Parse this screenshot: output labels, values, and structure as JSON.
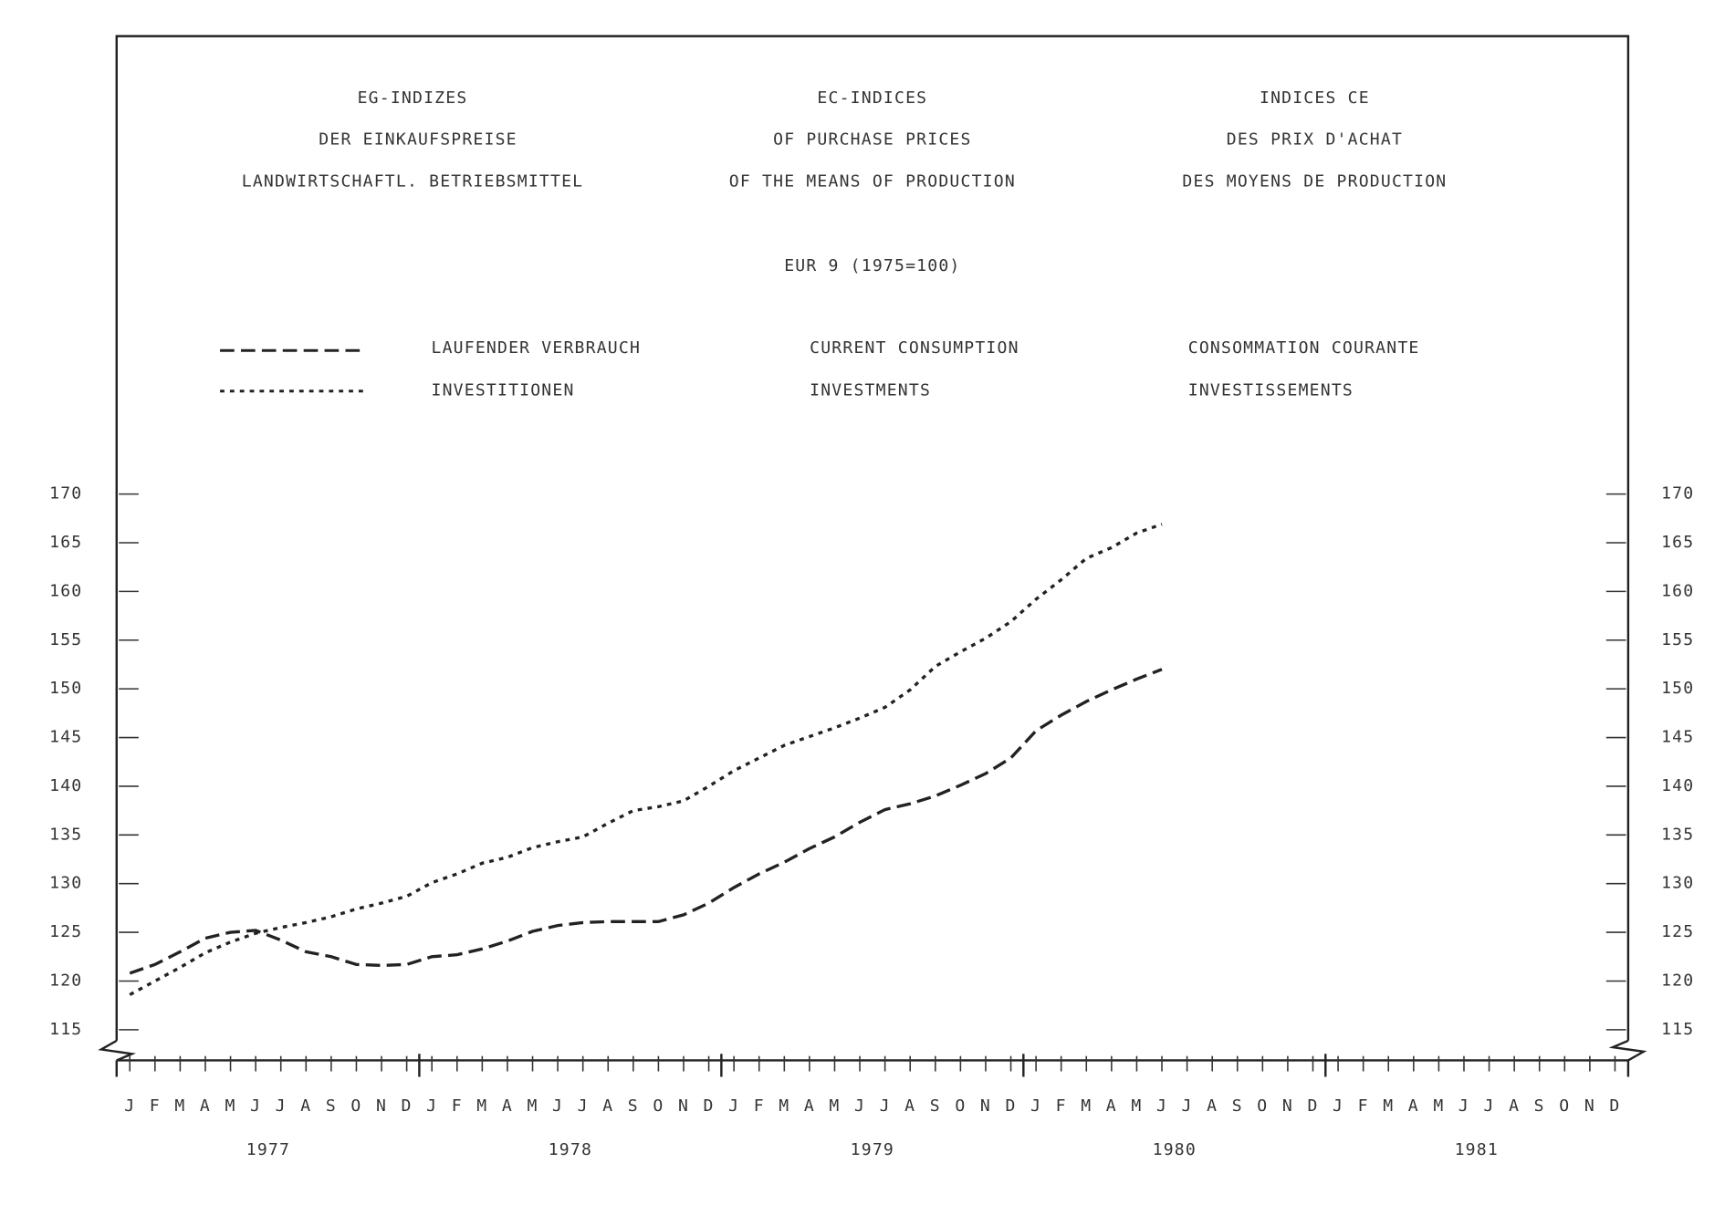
{
  "chart_data": {
    "type": "line",
    "title": {
      "de": [
        "EG-INDIZES",
        "DER EINKAUFSPREISE",
        "LANDWIRTSCHAFTL. BETRIEBSMITTEL"
      ],
      "en": [
        "EC-INDICES",
        "OF PURCHASE PRICES",
        "OF THE MEANS OF PRODUCTION"
      ],
      "fr": [
        "INDICES CE",
        "DES PRIX D'ACHAT",
        "DES MOYENS DE PRODUCTION"
      ]
    },
    "subtitle": "EUR 9 (1975=100)",
    "categories": [
      "J",
      "F",
      "M",
      "A",
      "M",
      "J",
      "J",
      "A",
      "S",
      "O",
      "N",
      "D",
      "J",
      "F",
      "M",
      "A",
      "M",
      "J",
      "J",
      "A",
      "S",
      "O",
      "N",
      "D",
      "J",
      "F",
      "M",
      "A",
      "M",
      "J",
      "J",
      "A",
      "S",
      "O",
      "N",
      "D",
      "J",
      "F",
      "M",
      "A",
      "M",
      "J",
      "J",
      "A",
      "S",
      "O",
      "N",
      "D",
      "J",
      "F",
      "M",
      "A",
      "M",
      "J",
      "J",
      "A",
      "S",
      "O",
      "N",
      "D"
    ],
    "years": [
      "1977",
      "1978",
      "1979",
      "1980",
      "1981"
    ],
    "series": [
      {
        "name": "LAUFENDER VERBRAUCH",
        "name_en": "CURRENT CONSUMPTION",
        "name_fr": "CONSOMMATION COURANTE",
        "color": "#222222",
        "dash": "dashed",
        "values": [
          120.8,
          121.7,
          123,
          124.4,
          125,
          125.2,
          124.2,
          123,
          122.5,
          121.7,
          121.6,
          121.7,
          122.5,
          122.7,
          123.3,
          124.1,
          125.1,
          125.7,
          126,
          126.1,
          126.1,
          126.1,
          126.8,
          128,
          129.6,
          131,
          132.2,
          133.6,
          134.8,
          136.3,
          137.6,
          138.2,
          139,
          140.1,
          141.3,
          142.9,
          145.7,
          147.3,
          148.7,
          149.9,
          151,
          152,
          null,
          null,
          null,
          null,
          null,
          null,
          null,
          null,
          null,
          null,
          null,
          null,
          null,
          null,
          null,
          null,
          null,
          null
        ]
      },
      {
        "name": "INVESTITIONEN",
        "name_en": "INVESTMENTS",
        "name_fr": "INVESTISSEMENTS",
        "color": "#222222",
        "dash": "dotted",
        "values": [
          118.6,
          120,
          121.4,
          122.9,
          124,
          124.9,
          125.5,
          126,
          126.6,
          127.4,
          128,
          128.7,
          130.1,
          131,
          132.1,
          132.7,
          133.7,
          134.3,
          134.8,
          136.2,
          137.5,
          137.9,
          138.5,
          140,
          141.6,
          142.9,
          144.2,
          145.1,
          146,
          147,
          148.1,
          149.9,
          152.3,
          153.8,
          155.2,
          156.9,
          159.2,
          161.2,
          163.4,
          164.5,
          166,
          166.9,
          null,
          null,
          null,
          null,
          null,
          null,
          null,
          null,
          null,
          null,
          null,
          null,
          null,
          null,
          null,
          null,
          null,
          null
        ]
      }
    ],
    "ylim": [
      115,
      170
    ],
    "yticks": [
      115,
      120,
      125,
      130,
      135,
      140,
      145,
      150,
      155,
      160,
      165,
      170
    ],
    "grid": false
  }
}
